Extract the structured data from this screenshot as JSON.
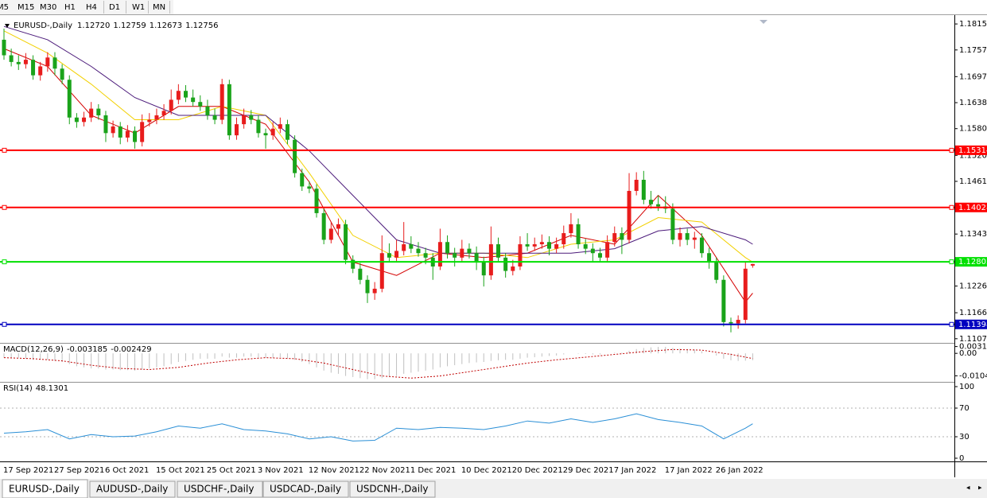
{
  "toolbar": {
    "timeframes": [
      "M5",
      "M15",
      "M30",
      "H1",
      "H4",
      "D1",
      "W1",
      "MN"
    ]
  },
  "chart_data": {
    "type": "candlestick",
    "title": "EURUSD-,Daily",
    "last_bar_labels": [
      "1.12720",
      "1.12759",
      "1.12673",
      "1.12756"
    ],
    "up_color": "#e81c1c",
    "down_color": "#1aa31a",
    "ylim": [
      1.11,
      1.183
    ],
    "yticks": [
      1.18155,
      {
        "value": 1.1757,
        "label": "1.17570"
      },
      {
        "value": 1.1697,
        "label": "1.16970"
      },
      1.16385,
      {
        "value": 1.158,
        "label": "1.15800"
      },
      {
        "value": 1.152,
        "label": "1.15200"
      },
      1.14615,
      {
        "value": 1.1343,
        "label": "1.13430"
      },
      {
        "value": 1.1226,
        "label": "1.12260"
      },
      {
        "value": 1.1166,
        "label": "1.11660"
      },
      1.11075
    ],
    "categories": [
      "17 Sep 2021",
      null,
      null,
      null,
      null,
      null,
      null,
      "27 Sep 2021",
      null,
      null,
      null,
      null,
      null,
      null,
      "6 Oct 2021",
      null,
      null,
      null,
      null,
      null,
      null,
      "15 Oct 2021",
      null,
      null,
      null,
      null,
      null,
      null,
      "25 Oct 2021",
      null,
      null,
      null,
      null,
      null,
      null,
      "3 Nov 2021",
      null,
      null,
      null,
      null,
      null,
      null,
      "12 Nov 2021",
      null,
      null,
      null,
      null,
      null,
      null,
      "22 Nov 2021",
      null,
      null,
      null,
      null,
      null,
      null,
      "1 Dec 2021",
      null,
      null,
      null,
      null,
      null,
      null,
      "10 Dec 2021",
      null,
      null,
      null,
      null,
      null,
      null,
      "20 Dec 2021",
      null,
      null,
      null,
      null,
      null,
      null,
      "29 Dec 2021",
      null,
      null,
      null,
      null,
      null,
      null,
      "7 Jan 2022",
      null,
      null,
      null,
      null,
      null,
      null,
      "17 Jan 2022",
      null,
      null,
      null,
      null,
      null,
      null,
      "26 Jan 2022",
      null,
      null,
      null,
      null,
      null
    ],
    "candles": [
      [
        1.178,
        1.1805,
        1.1735,
        1.1745
      ],
      [
        1.1745,
        1.176,
        1.172,
        1.173
      ],
      [
        1.173,
        1.1745,
        1.1712,
        1.1725
      ],
      [
        1.1725,
        1.175,
        1.1715,
        1.1735
      ],
      [
        1.1735,
        1.1745,
        1.169,
        1.17
      ],
      [
        1.17,
        1.173,
        1.1688,
        1.172
      ],
      [
        1.172,
        1.1752,
        1.1708,
        1.174
      ],
      [
        1.174,
        1.1752,
        1.17,
        1.1715
      ],
      [
        1.1715,
        1.1725,
        1.168,
        1.169
      ],
      [
        1.169,
        1.17,
        1.159,
        1.1605
      ],
      [
        1.1605,
        1.1615,
        1.1582,
        1.1595
      ],
      [
        1.1595,
        1.1618,
        1.1585,
        1.1605
      ],
      [
        1.1605,
        1.164,
        1.1595,
        1.1625
      ],
      [
        1.1625,
        1.1635,
        1.16,
        1.161
      ],
      [
        1.161,
        1.162,
        1.155,
        1.157
      ],
      [
        1.157,
        1.1598,
        1.156,
        1.1585
      ],
      [
        1.1585,
        1.1595,
        1.1545,
        1.156
      ],
      [
        1.156,
        1.1588,
        1.155,
        1.1575
      ],
      [
        1.1575,
        1.1585,
        1.1535,
        1.155
      ],
      [
        1.155,
        1.1612,
        1.154,
        1.1595
      ],
      [
        1.1595,
        1.1615,
        1.1585,
        1.16
      ],
      [
        1.16,
        1.1625,
        1.159,
        1.161
      ],
      [
        1.161,
        1.1635,
        1.16,
        1.162
      ],
      [
        1.162,
        1.1668,
        1.1612,
        1.1645
      ],
      [
        1.1645,
        1.168,
        1.1635,
        1.1665
      ],
      [
        1.1665,
        1.1678,
        1.164,
        1.165
      ],
      [
        1.165,
        1.1668,
        1.163,
        1.164
      ],
      [
        1.164,
        1.1655,
        1.162,
        1.163
      ],
      [
        1.163,
        1.1645,
        1.16,
        1.161
      ],
      [
        1.161,
        1.1625,
        1.159,
        1.16
      ],
      [
        1.16,
        1.1692,
        1.159,
        1.168
      ],
      [
        1.168,
        1.169,
        1.1555,
        1.1565
      ],
      [
        1.1565,
        1.1605,
        1.1555,
        1.159
      ],
      [
        1.159,
        1.1625,
        1.158,
        1.161
      ],
      [
        1.161,
        1.1622,
        1.159,
        1.16
      ],
      [
        1.16,
        1.161,
        1.156,
        1.157
      ],
      [
        1.157,
        1.158,
        1.1535,
        1.1565
      ],
      [
        1.1565,
        1.1595,
        1.1555,
        1.158
      ],
      [
        1.158,
        1.1605,
        1.157,
        1.159
      ],
      [
        1.159,
        1.16,
        1.1545,
        1.1555
      ],
      [
        1.1555,
        1.1565,
        1.147,
        1.148
      ],
      [
        1.148,
        1.149,
        1.144,
        1.145
      ],
      [
        1.145,
        1.1462,
        1.1435,
        1.1445
      ],
      [
        1.1445,
        1.1455,
        1.138,
        1.139
      ],
      [
        1.139,
        1.14,
        1.132,
        1.133
      ],
      [
        1.133,
        1.137,
        1.1322,
        1.1355
      ],
      [
        1.1355,
        1.1378,
        1.134,
        1.1365
      ],
      [
        1.1365,
        1.1375,
        1.1275,
        1.1285
      ],
      [
        1.1285,
        1.1295,
        1.1255,
        1.1265
      ],
      [
        1.1265,
        1.1278,
        1.123,
        1.124
      ],
      [
        1.124,
        1.125,
        1.1188,
        1.121
      ],
      [
        1.121,
        1.1235,
        1.1195,
        1.122
      ],
      [
        1.122,
        1.134,
        1.1212,
        1.13
      ],
      [
        1.13,
        1.1322,
        1.128,
        1.129
      ],
      [
        1.129,
        1.133,
        1.1282,
        1.1305
      ],
      [
        1.1305,
        1.137,
        1.1295,
        1.132
      ],
      [
        1.132,
        1.1338,
        1.13,
        1.131
      ],
      [
        1.131,
        1.1325,
        1.1292,
        1.13
      ],
      [
        1.13,
        1.1312,
        1.1275,
        1.129
      ],
      [
        1.129,
        1.13,
        1.124,
        1.127
      ],
      [
        1.127,
        1.1355,
        1.1262,
        1.1325
      ],
      [
        1.1325,
        1.134,
        1.1288,
        1.13
      ],
      [
        1.13,
        1.1312,
        1.127,
        1.129
      ],
      [
        1.129,
        1.133,
        1.128,
        1.131
      ],
      [
        1.131,
        1.1322,
        1.1288,
        1.13
      ],
      [
        1.13,
        1.1315,
        1.1262,
        1.128
      ],
      [
        1.128,
        1.1292,
        1.1225,
        1.125
      ],
      [
        1.125,
        1.136,
        1.124,
        1.132
      ],
      [
        1.132,
        1.1335,
        1.128,
        1.129
      ],
      [
        1.129,
        1.13,
        1.1245,
        1.126
      ],
      [
        1.126,
        1.1285,
        1.125,
        1.127
      ],
      [
        1.127,
        1.1338,
        1.1262,
        1.132
      ],
      [
        1.132,
        1.1345,
        1.1305,
        1.1315
      ],
      [
        1.1315,
        1.1335,
        1.1305,
        1.132
      ],
      [
        1.132,
        1.1342,
        1.131,
        1.1325
      ],
      [
        1.1325,
        1.1338,
        1.1295,
        1.131
      ],
      [
        1.131,
        1.1335,
        1.13,
        1.132
      ],
      [
        1.132,
        1.1362,
        1.131,
        1.1345
      ],
      [
        1.1345,
        1.139,
        1.1335,
        1.1365
      ],
      [
        1.1365,
        1.1378,
        1.131,
        1.132
      ],
      [
        1.132,
        1.1332,
        1.1298,
        1.131
      ],
      [
        1.131,
        1.1322,
        1.128,
        1.13
      ],
      [
        1.13,
        1.1312,
        1.1282,
        1.129
      ],
      [
        1.129,
        1.134,
        1.128,
        1.1325
      ],
      [
        1.1325,
        1.136,
        1.1315,
        1.1345
      ],
      [
        1.1345,
        1.1358,
        1.1298,
        1.133
      ],
      [
        1.133,
        1.148,
        1.1322,
        1.144
      ],
      [
        1.144,
        1.1482,
        1.143,
        1.1465
      ],
      [
        1.1465,
        1.1485,
        1.141,
        1.142
      ],
      [
        1.142,
        1.144,
        1.14,
        1.141
      ],
      [
        1.141,
        1.143,
        1.1395,
        1.1405
      ],
      [
        1.1405,
        1.1428,
        1.139,
        1.14
      ],
      [
        1.14,
        1.1412,
        1.132,
        1.133
      ],
      [
        1.133,
        1.1358,
        1.1315,
        1.1345
      ],
      [
        1.1345,
        1.1355,
        1.1318,
        1.133
      ],
      [
        1.133,
        1.1348,
        1.131,
        1.1335
      ],
      [
        1.1335,
        1.1345,
        1.129,
        1.13
      ],
      [
        1.13,
        1.1312,
        1.1265,
        1.128
      ],
      [
        1.128,
        1.129,
        1.1232,
        1.124
      ],
      [
        1.124,
        1.125,
        1.1135,
        1.1145
      ],
      [
        1.1145,
        1.1155,
        1.1122,
        1.1142
      ],
      [
        1.1142,
        1.116,
        1.113,
        1.115
      ],
      [
        1.115,
        1.128,
        1.1142,
        1.1265
      ],
      [
        1.1272,
        1.12759,
        1.12673,
        1.12756
      ]
    ],
    "levels": [
      {
        "value": 1.15314,
        "color": "#ff0000"
      },
      {
        "value": 1.14028,
        "color": "#ff0000"
      },
      {
        "value": 1.12805,
        "color": "#00e000"
      },
      {
        "value": 1.11398,
        "color": "#0000c0"
      }
    ],
    "moving_averages": [
      {
        "color": "#d40000",
        "x": [
          0,
          6,
          12,
          18,
          24,
          30,
          36,
          42,
          48,
          54,
          60,
          66,
          72,
          78,
          84,
          90,
          96,
          102,
          103
        ],
        "values": [
          1.176,
          1.172,
          1.161,
          1.157,
          1.163,
          1.163,
          1.159,
          1.146,
          1.128,
          1.125,
          1.13,
          1.129,
          1.13,
          1.134,
          1.132,
          1.143,
          1.134,
          1.119,
          1.121
        ]
      },
      {
        "color": "#f2d000",
        "x": [
          0,
          6,
          12,
          18,
          24,
          30,
          36,
          42,
          48,
          54,
          60,
          66,
          72,
          78,
          84,
          90,
          96,
          102,
          103
        ],
        "values": [
          1.18,
          1.175,
          1.168,
          1.16,
          1.16,
          1.163,
          1.161,
          1.148,
          1.134,
          1.129,
          1.13,
          1.13,
          1.129,
          1.132,
          1.133,
          1.138,
          1.137,
          1.129,
          1.128
        ]
      },
      {
        "color": "#4b1a7a",
        "x": [
          0,
          6,
          12,
          18,
          24,
          30,
          36,
          42,
          48,
          54,
          60,
          66,
          72,
          78,
          84,
          90,
          96,
          102,
          103
        ],
        "values": [
          1.181,
          1.178,
          1.172,
          1.165,
          1.161,
          1.161,
          1.161,
          1.153,
          1.143,
          1.133,
          1.13,
          1.13,
          1.13,
          1.13,
          1.131,
          1.135,
          1.136,
          1.133,
          1.132
        ]
      }
    ],
    "indicators": [
      {
        "type": "macd",
        "label": "MACD(12,26,9)",
        "ylim": [
          -0.0125,
          0.0045
        ],
        "yticks": [
          0.003165,
          {
            "value": 0,
            "label": "0.00"
          },
          -0.01043
        ],
        "histogram": {
          "color": "#c0c0c0",
          "values": [
            -0.002,
            -0.002,
            -0.002,
            -0.0025,
            -0.003,
            -0.003,
            -0.003,
            -0.0035,
            -0.004,
            -0.005,
            -0.006,
            -0.0065,
            -0.007,
            -0.007,
            -0.0075,
            -0.0075,
            -0.0078,
            -0.0078,
            -0.008,
            -0.0075,
            -0.007,
            -0.0065,
            -0.006,
            -0.005,
            -0.004,
            -0.0035,
            -0.003,
            -0.0025,
            -0.0025,
            -0.0025,
            -0.0015,
            -0.002,
            -0.002,
            -0.0015,
            -0.0015,
            -0.002,
            -0.002,
            -0.002,
            -0.0018,
            -0.0022,
            -0.003,
            -0.004,
            -0.005,
            -0.0065,
            -0.008,
            -0.009,
            -0.0095,
            -0.0105,
            -0.011,
            -0.0115,
            -0.012,
            -0.012,
            -0.0115,
            -0.011,
            -0.0105,
            -0.0095,
            -0.009,
            -0.0085,
            -0.008,
            -0.0075,
            -0.0065,
            -0.006,
            -0.0055,
            -0.005,
            -0.0045,
            -0.0042,
            -0.004,
            -0.0035,
            -0.0032,
            -0.003,
            -0.003,
            -0.0025,
            -0.002,
            -0.0018,
            -0.0015,
            -0.0012,
            -0.001,
            -0.0005,
            0,
            -0.0002,
            -0.0003,
            -0.0005,
            -0.0005,
            0,
            0.0003,
            0.0003,
            0.0012,
            0.002,
            0.0025,
            0.0028,
            0.003,
            0.003,
            0.0025,
            0.0022,
            0.002,
            0.0018,
            0.001,
            0,
            -0.001,
            -0.0025,
            -0.0032,
            -0.0035,
            -0.0034,
            -0.003185
          ]
        },
        "signal": {
          "color": "#c00000",
          "x": [
            0,
            4,
            8,
            12,
            16,
            20,
            24,
            28,
            32,
            36,
            40,
            44,
            48,
            52,
            56,
            60,
            64,
            68,
            72,
            76,
            80,
            84,
            88,
            92,
            96,
            100,
            103
          ],
          "values": [
            -0.002,
            -0.0025,
            -0.0035,
            -0.0055,
            -0.007,
            -0.0075,
            -0.0065,
            -0.0045,
            -0.003,
            -0.002,
            -0.0025,
            -0.0045,
            -0.0075,
            -0.0105,
            -0.0115,
            -0.0105,
            -0.0085,
            -0.0065,
            -0.0045,
            -0.003,
            -0.0018,
            -0.0005,
            0.0008,
            0.0018,
            0.0015,
            -0.0005,
            -0.002429
          ]
        }
      },
      {
        "type": "rsi",
        "label": "RSI(14)",
        "ylim": [
          0,
          100
        ],
        "yticks": [
          100,
          70,
          30,
          0
        ],
        "levels": [
          70,
          30
        ],
        "line": {
          "color": "#2a8fd6",
          "x": [
            0,
            3,
            6,
            9,
            12,
            15,
            18,
            21,
            24,
            27,
            30,
            33,
            36,
            39,
            42,
            45,
            48,
            51,
            54,
            57,
            60,
            63,
            66,
            69,
            72,
            75,
            78,
            81,
            84,
            87,
            90,
            93,
            96,
            99,
            102,
            103
          ],
          "values": [
            35,
            37,
            40,
            27,
            33,
            30,
            31,
            37,
            45,
            42,
            48,
            40,
            38,
            34,
            27,
            30,
            24,
            25,
            42,
            40,
            43,
            42,
            40,
            45,
            52,
            49,
            55,
            50,
            55,
            62,
            54,
            50,
            45,
            27,
            42,
            48.1301
          ]
        }
      }
    ]
  },
  "tabs": [
    "EURUSD-,Daily",
    "AUDUSD-,Daily",
    "USDCHF-,Daily",
    "USDCAD-,Daily",
    "USDCNH-,Daily"
  ]
}
